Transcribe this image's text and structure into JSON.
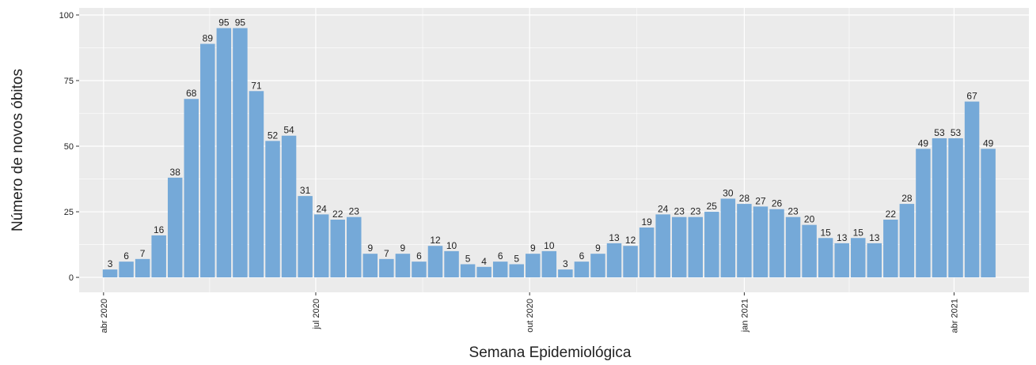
{
  "chart_data": {
    "type": "bar",
    "x_label": "Semana Epidemiológica",
    "y_label": "Número de novos óbitos",
    "x": [
      1,
      2,
      3,
      4,
      5,
      6,
      7,
      8,
      9,
      10,
      11,
      12,
      13,
      14,
      15,
      16,
      17,
      18,
      19,
      20,
      21,
      22,
      23,
      24,
      25,
      26,
      27,
      28,
      29,
      30,
      31,
      32,
      33,
      34,
      35,
      36,
      37,
      38,
      39,
      40,
      41,
      42,
      43,
      44,
      45,
      46,
      47,
      48,
      49,
      50,
      51,
      52,
      53,
      54,
      55
    ],
    "values": [
      3,
      6,
      7,
      16,
      38,
      68,
      89,
      95,
      95,
      71,
      52,
      54,
      31,
      24,
      22,
      23,
      9,
      7,
      9,
      6,
      12,
      10,
      5,
      4,
      6,
      5,
      9,
      10,
      3,
      6,
      9,
      13,
      12,
      19,
      24,
      23,
      23,
      25,
      30,
      28,
      27,
      26,
      23,
      20,
      15,
      13,
      15,
      13,
      22,
      28,
      49,
      53,
      53,
      67,
      49
    ],
    "color": "#75a9d8",
    "xlim": [
      -0.9,
      57.5
    ],
    "xticks": [
      {
        "value": 0.6,
        "label": "abr 2020"
      },
      {
        "value": 13.65,
        "label": "jul 2020"
      },
      {
        "value": 26.8,
        "label": "out 2020"
      },
      {
        "value": 40,
        "label": "jan 2021"
      },
      {
        "value": 52.9,
        "label": "abr 2021"
      }
    ],
    "ylim": [
      -5.7,
      102.7
    ],
    "yticks": [
      0,
      25,
      50,
      75,
      100
    ],
    "grid": true
  }
}
